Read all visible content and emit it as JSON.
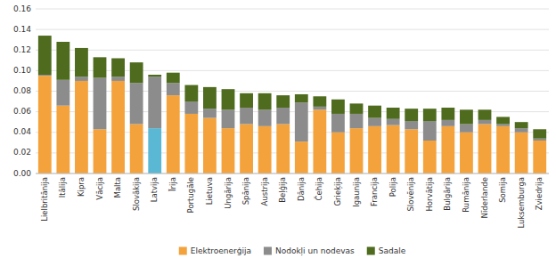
{
  "chart_data": {
    "type": "bar",
    "stacked": true,
    "categories": [
      "Lielbritānija",
      "Itālija",
      "Kipra",
      "Vācija",
      "Malta",
      "Slovākija",
      "Latvija",
      "Īrija",
      "Portugāle",
      "Lietuva",
      "Ungārija",
      "Spānija",
      "Austrija",
      "Beļģija",
      "Dānija",
      "Čehija",
      "Grieķija",
      "Igaunija",
      "Francija",
      "Polija",
      "Slovēnija",
      "Horvātija",
      "Bulgārija",
      "Rumānija",
      "Nīderlande",
      "Somija",
      "Luksemburga",
      "Zviedrija"
    ],
    "series": [
      {
        "name": "Elektroenerģija",
        "color": "#F4A33C",
        "colors": [
          "#F4A33C",
          "#F4A33C",
          "#F4A33C",
          "#F4A33C",
          "#F4A33C",
          "#F4A33C",
          "#5BB8D4",
          "#F4A33C",
          "#F4A33C",
          "#F4A33C",
          "#F4A33C",
          "#F4A33C",
          "#F4A33C",
          "#F4A33C",
          "#F4A33C",
          "#F4A33C",
          "#F4A33C",
          "#F4A33C",
          "#F4A33C",
          "#F4A33C",
          "#F4A33C",
          "#F4A33C",
          "#F4A33C",
          "#F4A33C",
          "#F4A33C",
          "#F4A33C",
          "#F4A33C",
          "#F4A33C"
        ],
        "values": [
          0.095,
          0.066,
          0.09,
          0.043,
          0.09,
          0.048,
          0.044,
          0.076,
          0.058,
          0.054,
          0.044,
          0.048,
          0.046,
          0.048,
          0.031,
          0.062,
          0.04,
          0.044,
          0.046,
          0.047,
          0.043,
          0.032,
          0.046,
          0.04,
          0.048,
          0.046,
          0.04,
          0.032
        ]
      },
      {
        "name": "Nodokļi un nodevas",
        "color": "#8C8C8C",
        "values": [
          0.001,
          0.025,
          0.004,
          0.05,
          0.004,
          0.04,
          0.05,
          0.012,
          0.012,
          0.009,
          0.018,
          0.016,
          0.016,
          0.016,
          0.038,
          0.003,
          0.018,
          0.014,
          0.008,
          0.006,
          0.008,
          0.019,
          0.006,
          0.008,
          0.004,
          0.002,
          0.004,
          0.002
        ]
      },
      {
        "name": "Sadale",
        "color": "#4E6B1E",
        "values": [
          0.038,
          0.037,
          0.028,
          0.02,
          0.018,
          0.02,
          0.002,
          0.01,
          0.016,
          0.021,
          0.02,
          0.014,
          0.016,
          0.012,
          0.008,
          0.01,
          0.014,
          0.01,
          0.012,
          0.011,
          0.012,
          0.012,
          0.012,
          0.014,
          0.01,
          0.007,
          0.006,
          0.009
        ]
      }
    ],
    "ylim": [
      0,
      0.16
    ],
    "yticks": [
      {
        "value": 0.0,
        "label": "0.00"
      },
      0.02,
      0.04,
      0.06,
      0.08,
      {
        "value": 0.1,
        "label": "0.10"
      },
      0.12,
      0.14,
      0.16
    ],
    "grid": true,
    "legend": "bottom"
  }
}
